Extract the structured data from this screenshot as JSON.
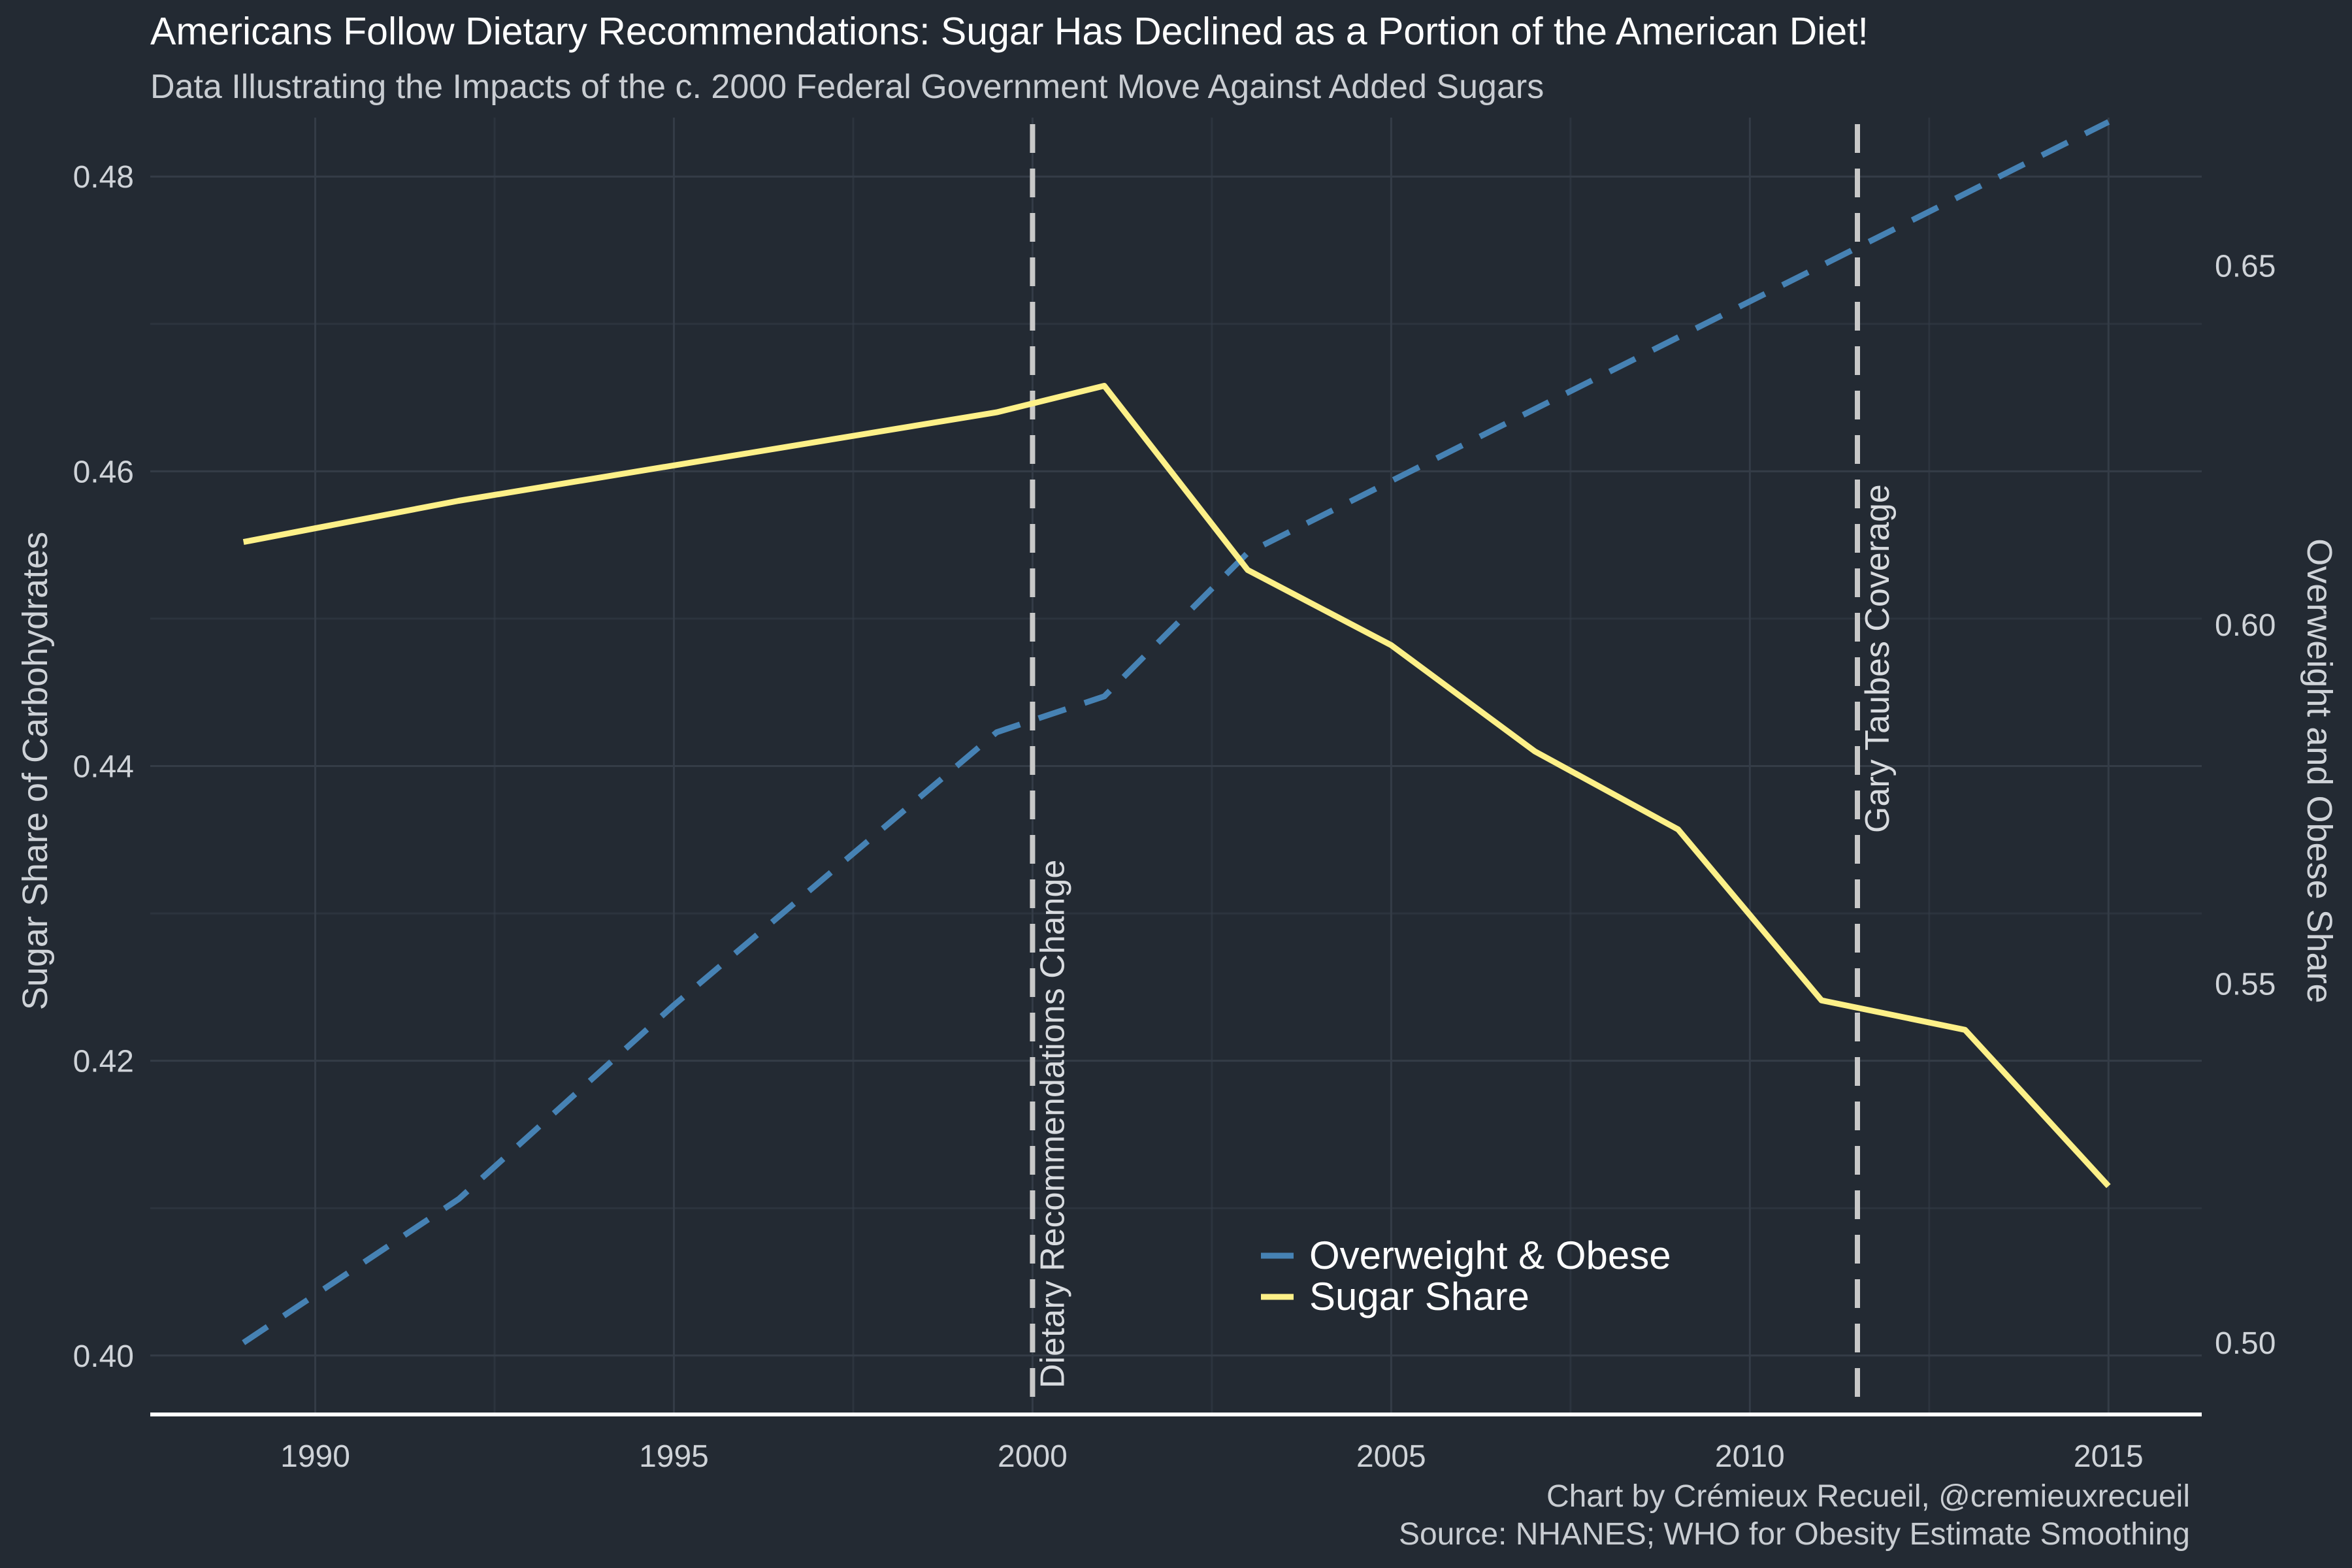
{
  "chart_data": {
    "type": "line",
    "title": "Americans Follow Dietary Recommendations: Sugar Has Declined as a Portion of the American Diet!",
    "subtitle": "Data Illustrating the Impacts of the c. 2000 Federal Government Move Against Added Sugars",
    "ylabel_left": "Sugar Share of Carbohydrates",
    "ylabel_right": "Overweight and Obese Share",
    "xlabel": "",
    "xlim": [
      1987.7,
      2016.3
    ],
    "ylim_left": [
      0.396,
      0.484
    ],
    "ylim_right": [
      0.49,
      0.6706
    ],
    "x_ticks": [
      1990,
      1995,
      2000,
      2005,
      2010,
      2015
    ],
    "y_ticks_left": [
      0.4,
      0.42,
      0.44,
      0.46,
      0.48
    ],
    "y_ticks_right": [
      0.5,
      0.55,
      0.6,
      0.65
    ],
    "y_tick_labels_left": [
      "0.40",
      "0.42",
      "0.44",
      "0.46",
      "0.48"
    ],
    "y_tick_labels_right": [
      "0.50",
      "0.55",
      "0.60",
      "0.65"
    ],
    "grid": true,
    "legend_position": "bottom-center",
    "series": [
      {
        "name": "Overweight & Obese",
        "axis": "right",
        "style": "dashed",
        "color": "#4682b4",
        "x": [
          1989,
          1992,
          1995,
          1999.5,
          2001,
          2003,
          2005,
          2009,
          2011,
          2015
        ],
        "values": [
          0.5,
          0.52,
          0.547,
          0.585,
          0.59,
          0.61,
          0.62,
          0.64,
          0.65,
          0.67
        ]
      },
      {
        "name": "Sugar Share",
        "axis": "left",
        "style": "solid",
        "color": "#fdf088",
        "x": [
          1989,
          1992,
          1999.5,
          2001,
          2003,
          2005,
          2007,
          2009,
          2011,
          2013,
          2015
        ],
        "values": [
          0.4552,
          0.458,
          0.464,
          0.4658,
          0.4533,
          0.4482,
          0.441,
          0.4357,
          0.4241,
          0.4221,
          0.4115
        ]
      }
    ],
    "vlines": [
      {
        "x": 2000,
        "label": "Dietary Recommendations Change",
        "color": "#c8c8c8"
      },
      {
        "x": 2011.5,
        "label": "Gary Taubes Coverage",
        "color": "#c8c8c8"
      }
    ],
    "captions": [
      "Chart by Crémieux Recueil, @cremieuxrecueil",
      "Source: NHANES; WHO for Obesity Estimate Smoothing"
    ]
  }
}
